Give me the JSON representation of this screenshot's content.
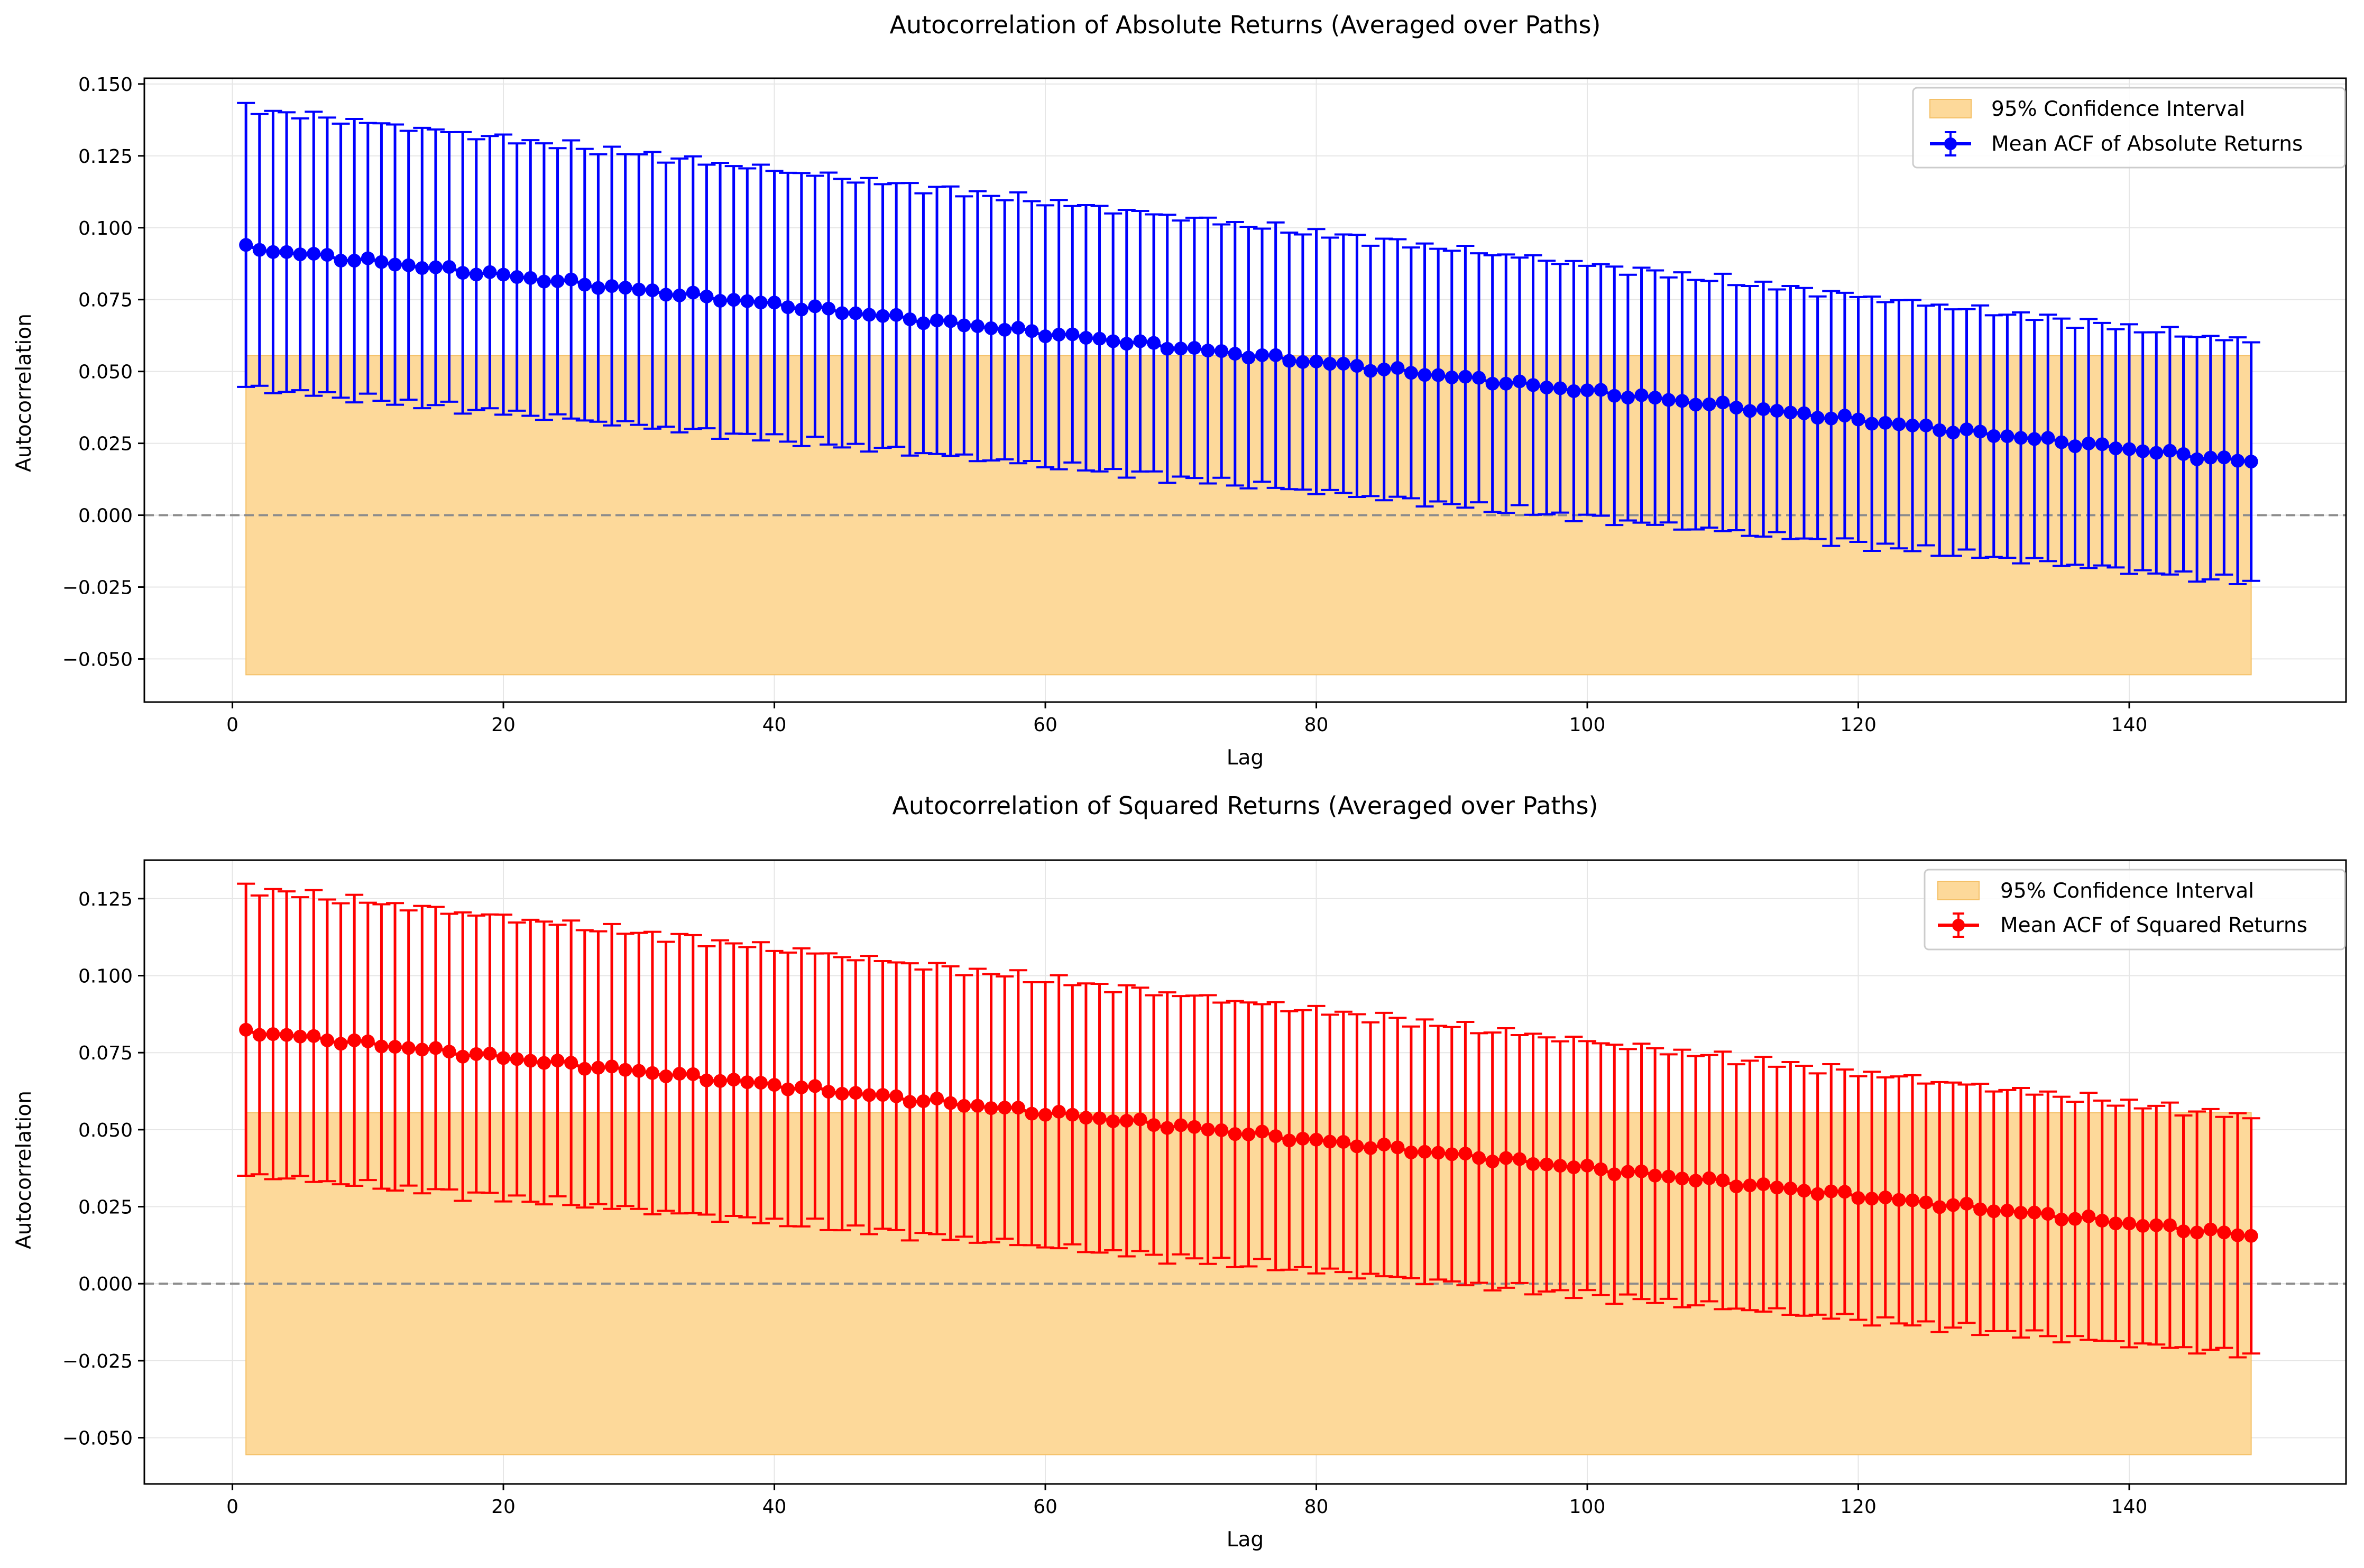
{
  "colors": {
    "ci_fill": "#fdd99a",
    "ci_edge": "#f4c067",
    "grid": "#e6e6e6",
    "zero_line": "#8c8c8c",
    "axes": "#000000",
    "legend_border": "#cccccc"
  },
  "chart_data": [
    {
      "type": "line",
      "title": "Autocorrelation of Absolute Returns (Averaged over Paths)",
      "xlabel": "Lag",
      "ylabel": "Autocorrelation",
      "xlim": [
        -6.5,
        156
      ],
      "ylim": [
        -0.065,
        0.152
      ],
      "xticks": [
        0,
        20,
        40,
        60,
        80,
        100,
        120,
        140
      ],
      "yticks": [
        -0.05,
        -0.025,
        0.0,
        0.025,
        0.05,
        0.075,
        0.1,
        0.125,
        0.15
      ],
      "ytick_labels": [
        "−0.050",
        "−0.025",
        "0.000",
        "0.025",
        "0.050",
        "0.075",
        "0.100",
        "0.125",
        "0.150"
      ],
      "grid": true,
      "legend_position": "top-right",
      "confidence_interval": {
        "label": "95% Confidence Interval",
        "lower": -0.0555,
        "upper": 0.0555,
        "x_range": [
          1,
          149
        ]
      },
      "zero_line": 0,
      "series": [
        {
          "name": "Mean ACF of Absolute Returns",
          "color": "#0000ff",
          "lag_range": [
            1,
            149
          ],
          "mean_start": 0.093,
          "mean_end": 0.0185,
          "error_half_width_start": 0.0485,
          "error_half_width_end": 0.0418,
          "noise_amplitude": 0.0011
        }
      ]
    },
    {
      "type": "line",
      "title": "Autocorrelation of Squared Returns (Averaged over Paths)",
      "xlabel": "Lag",
      "ylabel": "Autocorrelation",
      "xlim": [
        -6.5,
        156
      ],
      "ylim": [
        -0.065,
        0.1375
      ],
      "xticks": [
        0,
        20,
        40,
        60,
        80,
        100,
        120,
        140
      ],
      "yticks": [
        -0.05,
        -0.025,
        0.0,
        0.025,
        0.05,
        0.075,
        0.1,
        0.125
      ],
      "ytick_labels": [
        "−0.050",
        "−0.025",
        "0.000",
        "0.025",
        "0.050",
        "0.075",
        "0.100",
        "0.125"
      ],
      "grid": true,
      "legend_position": "top-right",
      "confidence_interval": {
        "label": "95% Confidence Interval",
        "lower": -0.0555,
        "upper": 0.0555,
        "x_range": [
          1,
          149
        ]
      },
      "zero_line": 0,
      "series": [
        {
          "name": "Mean ACF of Squared Returns",
          "color": "#ff0000",
          "lag_range": [
            1,
            149
          ],
          "mean_start": 0.082,
          "mean_end": 0.0155,
          "error_half_width_start": 0.0465,
          "error_half_width_end": 0.0385,
          "noise_amplitude": 0.0011
        }
      ]
    }
  ]
}
